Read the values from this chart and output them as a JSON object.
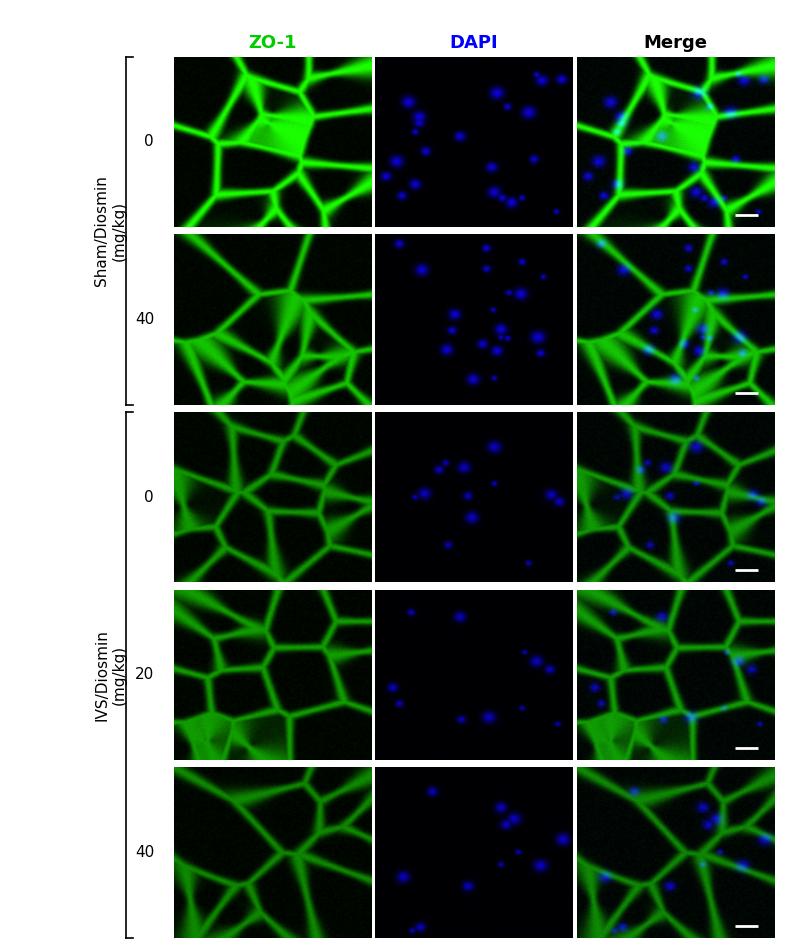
{
  "title": "",
  "col_labels": [
    "ZO-1",
    "DAPI",
    "Merge"
  ],
  "col_label_colors": [
    "#00cc00",
    "#0000ff",
    "#000000"
  ],
  "row_groups": [
    {
      "group_label": "Sham/Diosmin\n(mg/kg)",
      "rows": [
        {
          "dose_label": "0"
        },
        {
          "dose_label": "40"
        }
      ]
    },
    {
      "group_label": "IVS/Diosmin\n(mg/kg)",
      "rows": [
        {
          "dose_label": "0"
        },
        {
          "dose_label": "20"
        },
        {
          "dose_label": "40"
        }
      ]
    }
  ],
  "n_cols": 3,
  "n_rows": 5,
  "bg_color": "#ffffff",
  "image_bg": "#000000",
  "scalebar_color": "#ffffff",
  "col_label_fontsize": 13,
  "row_label_fontsize": 11,
  "dose_label_fontsize": 11
}
